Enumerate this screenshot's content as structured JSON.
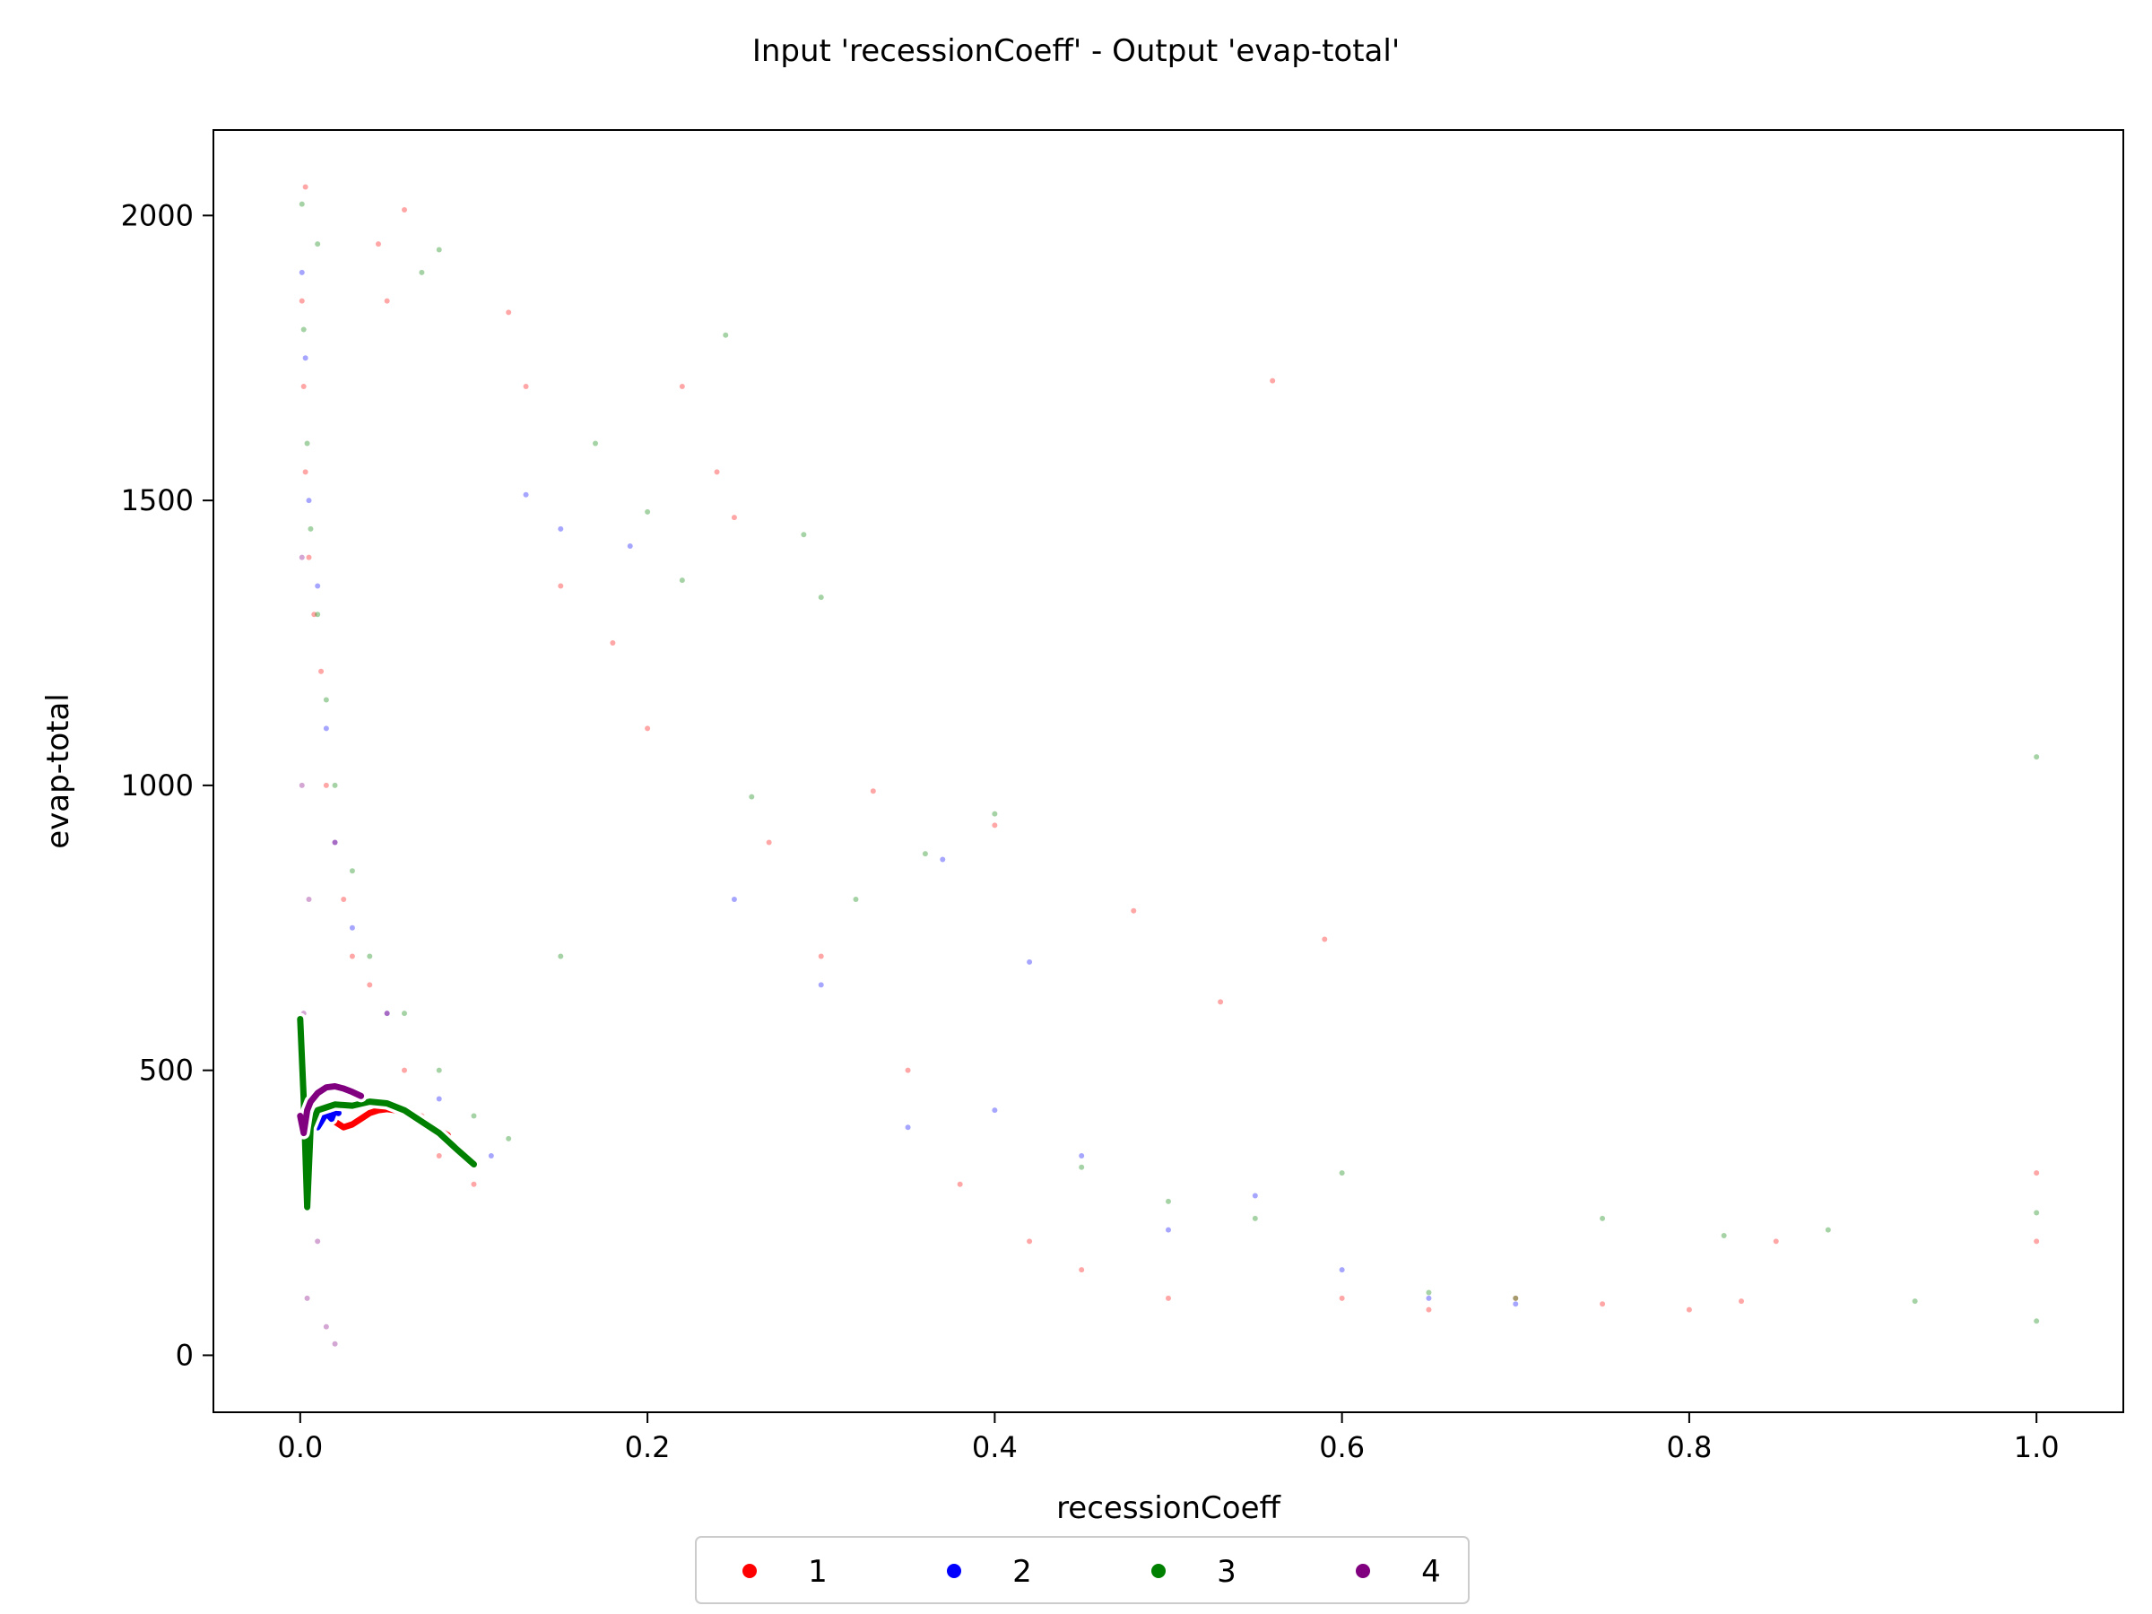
{
  "chart_data": {
    "type": "scatter",
    "title": "Input 'recessionCoeff' - Output 'evap-total'",
    "xlabel": "recessionCoeff",
    "ylabel": "evap-total",
    "xlim": [
      -0.05,
      1.05
    ],
    "ylim": [
      -100,
      2150
    ],
    "x_ticks": [
      0.0,
      0.2,
      0.4,
      0.6,
      0.8,
      1.0
    ],
    "x_tick_labels": [
      "0.0",
      "0.2",
      "0.4",
      "0.6",
      "0.8",
      "1.0"
    ],
    "y_ticks": [
      0,
      500,
      1000,
      1500,
      2000
    ],
    "y_tick_labels": [
      "0",
      "500",
      "1000",
      "1500",
      "2000"
    ],
    "grid": false,
    "legend_position": "bottom-center",
    "series": [
      {
        "name": "1",
        "color": "#ff0000",
        "points": [
          [
            0.001,
            1850
          ],
          [
            0.002,
            1700
          ],
          [
            0.003,
            1550
          ],
          [
            0.005,
            1400
          ],
          [
            0.008,
            1300
          ],
          [
            0.012,
            1200
          ],
          [
            0.015,
            1000
          ],
          [
            0.02,
            900
          ],
          [
            0.025,
            800
          ],
          [
            0.03,
            700
          ],
          [
            0.04,
            650
          ],
          [
            0.05,
            600
          ],
          [
            0.06,
            500
          ],
          [
            0.07,
            420
          ],
          [
            0.08,
            350
          ],
          [
            0.1,
            300
          ],
          [
            0.12,
            1830
          ],
          [
            0.13,
            1700
          ],
          [
            0.15,
            1350
          ],
          [
            0.18,
            1250
          ],
          [
            0.2,
            1100
          ],
          [
            0.22,
            1700
          ],
          [
            0.24,
            1550
          ],
          [
            0.25,
            1470
          ],
          [
            0.27,
            900
          ],
          [
            0.3,
            700
          ],
          [
            0.33,
            990
          ],
          [
            0.35,
            500
          ],
          [
            0.38,
            300
          ],
          [
            0.4,
            930
          ],
          [
            0.42,
            200
          ],
          [
            0.45,
            150
          ],
          [
            0.48,
            780
          ],
          [
            0.5,
            100
          ],
          [
            0.53,
            620
          ],
          [
            0.56,
            1710
          ],
          [
            0.59,
            730
          ],
          [
            0.6,
            100
          ],
          [
            0.65,
            80
          ],
          [
            0.7,
            100
          ],
          [
            0.75,
            90
          ],
          [
            0.8,
            80
          ],
          [
            0.83,
            95
          ],
          [
            0.85,
            200
          ],
          [
            1.0,
            320
          ],
          [
            1.0,
            200
          ],
          [
            0.06,
            2010
          ],
          [
            0.05,
            1850
          ],
          [
            0.003,
            2050
          ],
          [
            0.045,
            1950
          ]
        ],
        "trend": [
          [
            0.02,
            410
          ],
          [
            0.025,
            400
          ],
          [
            0.03,
            405
          ],
          [
            0.035,
            415
          ],
          [
            0.04,
            425
          ],
          [
            0.045,
            430
          ],
          [
            0.05,
            432
          ],
          [
            0.055,
            430
          ],
          [
            0.06,
            425
          ],
          [
            0.065,
            418
          ],
          [
            0.07,
            410
          ],
          [
            0.075,
            402
          ],
          [
            0.08,
            395
          ],
          [
            0.085,
            386
          ]
        ]
      },
      {
        "name": "2",
        "color": "#0000ff",
        "points": [
          [
            0.001,
            1900
          ],
          [
            0.003,
            1750
          ],
          [
            0.005,
            1500
          ],
          [
            0.01,
            1350
          ],
          [
            0.015,
            1100
          ],
          [
            0.02,
            900
          ],
          [
            0.03,
            750
          ],
          [
            0.05,
            600
          ],
          [
            0.08,
            450
          ],
          [
            0.11,
            350
          ],
          [
            0.13,
            1510
          ],
          [
            0.15,
            1450
          ],
          [
            0.19,
            1420
          ],
          [
            0.25,
            800
          ],
          [
            0.3,
            650
          ],
          [
            0.35,
            400
          ],
          [
            0.4,
            430
          ],
          [
            0.45,
            350
          ],
          [
            0.5,
            220
          ],
          [
            0.55,
            280
          ],
          [
            0.6,
            150
          ],
          [
            0.65,
            100
          ],
          [
            0.7,
            90
          ],
          [
            0.42,
            690
          ],
          [
            0.37,
            870
          ]
        ],
        "trend": [
          [
            0.01,
            400
          ],
          [
            0.012,
            410
          ],
          [
            0.015,
            425
          ],
          [
            0.018,
            415
          ],
          [
            0.02,
            430
          ],
          [
            0.022,
            425
          ]
        ]
      },
      {
        "name": "3",
        "color": "#008000",
        "points": [
          [
            0.001,
            2020
          ],
          [
            0.002,
            1800
          ],
          [
            0.004,
            1600
          ],
          [
            0.006,
            1450
          ],
          [
            0.01,
            1300
          ],
          [
            0.015,
            1150
          ],
          [
            0.02,
            1000
          ],
          [
            0.03,
            850
          ],
          [
            0.04,
            700
          ],
          [
            0.06,
            600
          ],
          [
            0.08,
            500
          ],
          [
            0.1,
            420
          ],
          [
            0.12,
            380
          ],
          [
            0.15,
            700
          ],
          [
            0.17,
            1600
          ],
          [
            0.2,
            1480
          ],
          [
            0.22,
            1360
          ],
          [
            0.245,
            1790
          ],
          [
            0.26,
            980
          ],
          [
            0.29,
            1440
          ],
          [
            0.3,
            1330
          ],
          [
            0.32,
            800
          ],
          [
            0.36,
            880
          ],
          [
            0.4,
            950
          ],
          [
            0.45,
            330
          ],
          [
            0.5,
            270
          ],
          [
            0.55,
            240
          ],
          [
            0.6,
            320
          ],
          [
            0.65,
            110
          ],
          [
            0.7,
            100
          ],
          [
            0.75,
            240
          ],
          [
            0.82,
            210
          ],
          [
            0.88,
            220
          ],
          [
            0.93,
            95
          ],
          [
            1.0,
            1050
          ],
          [
            1.0,
            250
          ],
          [
            1.0,
            60
          ],
          [
            0.01,
            1950
          ],
          [
            0.07,
            1900
          ],
          [
            0.08,
            1940
          ]
        ],
        "trend": [
          [
            0.0,
            590
          ],
          [
            0.002,
            450
          ],
          [
            0.004,
            260
          ],
          [
            0.006,
            400
          ],
          [
            0.01,
            430
          ],
          [
            0.015,
            435
          ],
          [
            0.02,
            440
          ],
          [
            0.03,
            438
          ],
          [
            0.04,
            445
          ],
          [
            0.05,
            442
          ],
          [
            0.06,
            430
          ],
          [
            0.07,
            410
          ],
          [
            0.08,
            390
          ],
          [
            0.09,
            362
          ],
          [
            0.1,
            335
          ]
        ]
      },
      {
        "name": "4",
        "color": "#800080",
        "points": [
          [
            0.001,
            1000
          ],
          [
            0.001,
            1400
          ],
          [
            0.002,
            600
          ],
          [
            0.003,
            300
          ],
          [
            0.004,
            100
          ],
          [
            0.005,
            800
          ],
          [
            0.008,
            400
          ],
          [
            0.01,
            200
          ],
          [
            0.015,
            50
          ],
          [
            0.02,
            20
          ]
        ],
        "trend": [
          [
            0.0,
            420
          ],
          [
            0.002,
            390
          ],
          [
            0.004,
            430
          ],
          [
            0.006,
            445
          ],
          [
            0.01,
            460
          ],
          [
            0.015,
            470
          ],
          [
            0.02,
            472
          ],
          [
            0.025,
            468
          ],
          [
            0.03,
            462
          ],
          [
            0.035,
            455
          ]
        ]
      }
    ]
  }
}
